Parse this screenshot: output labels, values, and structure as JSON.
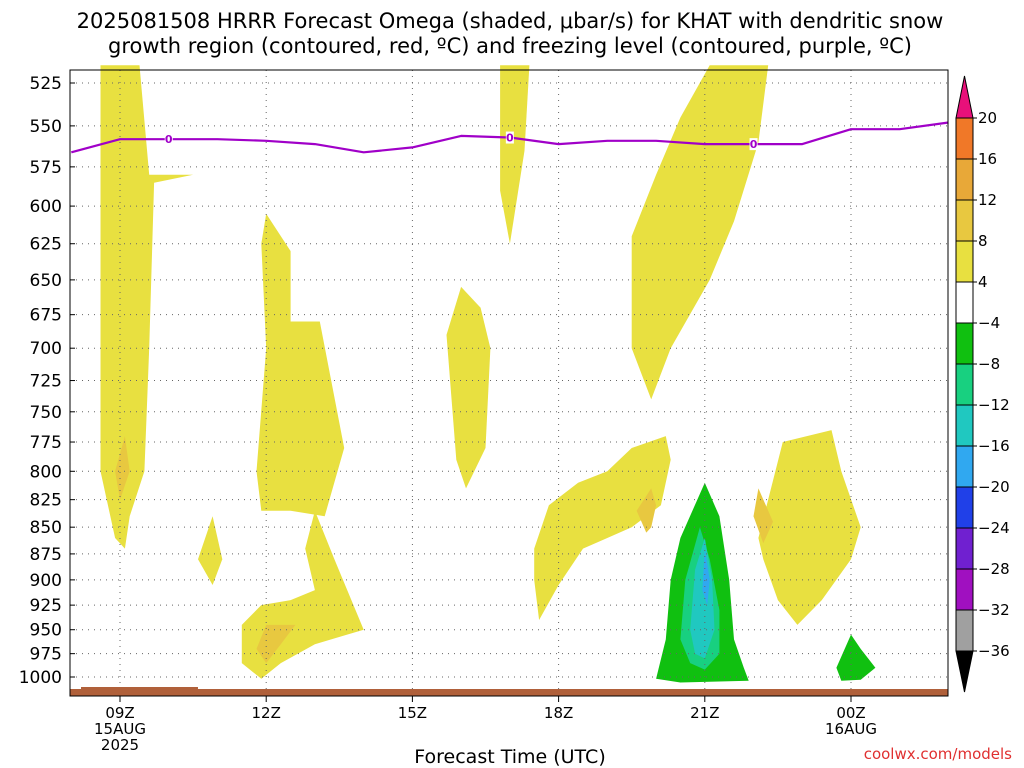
{
  "chart_data": {
    "type": "contour",
    "title_lines": [
      "2025081508 HRRR Forecast Omega (shaded, μbar/s) for KHAT with dendritic snow",
      "growth region (contoured, red, ºC) and freezing level (contoured, purple, ºC)"
    ],
    "xlabel": "Forecast Time (UTC)",
    "credit": "coolwx.com/models",
    "x_ticks": [
      {
        "hour": 9,
        "lines": [
          "09Z",
          "15AUG",
          "2025"
        ]
      },
      {
        "hour": 12,
        "lines": [
          "12Z"
        ]
      },
      {
        "hour": 15,
        "lines": [
          "15Z"
        ]
      },
      {
        "hour": 18,
        "lines": [
          "18Z"
        ]
      },
      {
        "hour": 21,
        "lines": [
          "21Z"
        ]
      },
      {
        "hour": 24,
        "lines": [
          "00Z",
          "16AUG"
        ]
      }
    ],
    "xlim": [
      8,
      26
    ],
    "y_ticks": [
      525,
      550,
      575,
      600,
      625,
      650,
      675,
      700,
      725,
      750,
      775,
      800,
      825,
      850,
      875,
      900,
      925,
      950,
      975,
      1000
    ],
    "ylim": [
      515,
      1010
    ],
    "y_scale": "log",
    "colorbar": {
      "levels": [
        20,
        16,
        12,
        8,
        4,
        -4,
        -8,
        -12,
        -16,
        -20,
        -24,
        -28,
        -32,
        -36
      ],
      "colors": {
        "c20": "#ff3030",
        "c16": "#f07828",
        "c12": "#e8a838",
        "c8": "#e8c840",
        "c4": "#e8e040",
        "zero": "#ffffff",
        "cm4": "#10c010",
        "cm8": "#18d080",
        "cm12": "#20c8c0",
        "cm16": "#30a8f0",
        "cm20": "#2040e8",
        "cm24": "#7020d0",
        "cm28": "#a010c0",
        "cm32": "#a0a0a0",
        "top": "#e8107a",
        "bottom": "#000000"
      }
    },
    "freezing_level": {
      "label": "0",
      "color": "#a000c8",
      "points": [
        [
          8,
          566
        ],
        [
          9,
          558
        ],
        [
          10,
          558
        ],
        [
          11,
          558
        ],
        [
          12,
          559
        ],
        [
          13,
          561
        ],
        [
          14,
          566
        ],
        [
          15,
          563
        ],
        [
          16,
          556
        ],
        [
          17,
          557
        ],
        [
          18,
          561
        ],
        [
          19,
          559
        ],
        [
          20,
          559
        ],
        [
          21,
          561
        ],
        [
          22,
          561
        ],
        [
          23,
          561
        ],
        [
          24,
          552
        ],
        [
          25,
          552
        ],
        [
          26,
          548
        ]
      ],
      "label_hours": [
        10,
        17,
        22
      ]
    },
    "terrain_color": "#b0603a",
    "shaded_regions": [
      {
        "level": "c4",
        "points": [
          [
            8.6,
            515
          ],
          [
            9.4,
            515
          ],
          [
            9.6,
            580
          ],
          [
            10.5,
            580
          ],
          [
            9.7,
            585
          ],
          [
            9.6,
            700
          ],
          [
            9.5,
            800
          ],
          [
            9.2,
            840
          ],
          [
            9.1,
            870
          ],
          [
            8.9,
            860
          ],
          [
            8.6,
            800
          ],
          [
            8.6,
            700
          ]
        ]
      },
      {
        "level": "c4",
        "points": [
          [
            11.9,
            625
          ],
          [
            12.0,
            605
          ],
          [
            12.5,
            630
          ],
          [
            12.5,
            680
          ],
          [
            13.1,
            680
          ],
          [
            13.6,
            780
          ],
          [
            13.2,
            840
          ],
          [
            12.5,
            835
          ],
          [
            11.9,
            835
          ],
          [
            11.8,
            800
          ],
          [
            12.0,
            700
          ]
        ]
      },
      {
        "level": "c4",
        "points": [
          [
            10.6,
            880
          ],
          [
            10.9,
            840
          ],
          [
            11.1,
            880
          ],
          [
            10.9,
            905
          ]
        ]
      },
      {
        "level": "c4",
        "points": [
          [
            11.5,
            945
          ],
          [
            11.9,
            925
          ],
          [
            12.5,
            920
          ],
          [
            13.0,
            910
          ],
          [
            12.8,
            870
          ],
          [
            13.0,
            835
          ],
          [
            13.4,
            880
          ],
          [
            14.0,
            950
          ],
          [
            13.0,
            965
          ],
          [
            12.3,
            985
          ],
          [
            11.9,
            1002
          ],
          [
            11.5,
            985
          ]
        ]
      },
      {
        "level": "c4",
        "points": [
          [
            16.8,
            515
          ],
          [
            17.4,
            515
          ],
          [
            17.3,
            565
          ],
          [
            17.0,
            625
          ],
          [
            16.8,
            590
          ]
        ]
      },
      {
        "level": "c4",
        "points": [
          [
            15.7,
            690
          ],
          [
            16.0,
            655
          ],
          [
            16.4,
            670
          ],
          [
            16.6,
            700
          ],
          [
            16.5,
            780
          ],
          [
            16.1,
            815
          ],
          [
            15.9,
            790
          ]
        ]
      },
      {
        "level": "c4",
        "points": [
          [
            19.5,
            620
          ],
          [
            20.0,
            580
          ],
          [
            20.5,
            545
          ],
          [
            21.1,
            515
          ],
          [
            22.3,
            515
          ],
          [
            22.1,
            560
          ],
          [
            21.6,
            610
          ],
          [
            21.1,
            650
          ],
          [
            20.3,
            700
          ],
          [
            19.9,
            740
          ],
          [
            19.5,
            700
          ]
        ]
      },
      {
        "level": "c4",
        "points": [
          [
            17.5,
            870
          ],
          [
            17.8,
            830
          ],
          [
            18.4,
            810
          ],
          [
            19.0,
            800
          ],
          [
            19.5,
            780
          ],
          [
            20.2,
            770
          ],
          [
            20.3,
            790
          ],
          [
            20.1,
            830
          ],
          [
            19.5,
            850
          ],
          [
            19.0,
            860
          ],
          [
            18.5,
            870
          ],
          [
            18.0,
            905
          ],
          [
            17.6,
            940
          ],
          [
            17.5,
            900
          ]
        ]
      },
      {
        "level": "c4",
        "points": [
          [
            22.1,
            860
          ],
          [
            22.6,
            775
          ],
          [
            23.6,
            765
          ],
          [
            23.8,
            800
          ],
          [
            24.2,
            850
          ],
          [
            24.0,
            880
          ],
          [
            23.4,
            920
          ],
          [
            22.9,
            945
          ],
          [
            22.5,
            920
          ],
          [
            22.2,
            880
          ]
        ]
      },
      {
        "level": "c8",
        "points": [
          [
            8.9,
            800
          ],
          [
            9.1,
            770
          ],
          [
            9.2,
            800
          ],
          [
            9.0,
            825
          ]
        ]
      },
      {
        "level": "c8",
        "points": [
          [
            11.8,
            970
          ],
          [
            12.0,
            945
          ],
          [
            12.6,
            945
          ],
          [
            12.3,
            965
          ],
          [
            12.0,
            985
          ]
        ]
      },
      {
        "level": "c8",
        "points": [
          [
            19.6,
            835
          ],
          [
            19.9,
            815
          ],
          [
            20.0,
            830
          ],
          [
            19.9,
            850
          ],
          [
            19.8,
            855
          ]
        ]
      },
      {
        "level": "c8",
        "points": [
          [
            22.0,
            840
          ],
          [
            22.1,
            815
          ],
          [
            22.4,
            845
          ],
          [
            22.2,
            865
          ]
        ]
      },
      {
        "level": "cm4",
        "points": [
          [
            20.0,
            1002
          ],
          [
            20.2,
            960
          ],
          [
            20.3,
            900
          ],
          [
            20.5,
            860
          ],
          [
            21.0,
            810
          ],
          [
            21.3,
            840
          ],
          [
            21.5,
            900
          ],
          [
            21.6,
            960
          ],
          [
            21.8,
            990
          ],
          [
            21.9,
            1004
          ],
          [
            20.5,
            1006
          ]
        ]
      },
      {
        "level": "cm4",
        "points": [
          [
            23.7,
            990
          ],
          [
            24.0,
            955
          ],
          [
            24.2,
            970
          ],
          [
            24.5,
            990
          ],
          [
            24.2,
            1003
          ],
          [
            23.8,
            1004
          ]
        ]
      },
      {
        "level": "cm8",
        "points": [
          [
            20.5,
            960
          ],
          [
            20.6,
            900
          ],
          [
            20.9,
            850
          ],
          [
            21.1,
            880
          ],
          [
            21.3,
            930
          ],
          [
            21.3,
            975
          ],
          [
            21.0,
            992
          ],
          [
            20.7,
            985
          ]
        ]
      },
      {
        "level": "cm12",
        "points": [
          [
            20.7,
            950
          ],
          [
            20.8,
            890
          ],
          [
            21.0,
            860
          ],
          [
            21.15,
            900
          ],
          [
            21.2,
            950
          ],
          [
            21.0,
            980
          ],
          [
            20.8,
            975
          ]
        ]
      },
      {
        "level": "cm16",
        "points": [
          [
            20.95,
            910
          ],
          [
            21.0,
            870
          ],
          [
            21.1,
            900
          ],
          [
            21.05,
            925
          ]
        ]
      }
    ]
  }
}
